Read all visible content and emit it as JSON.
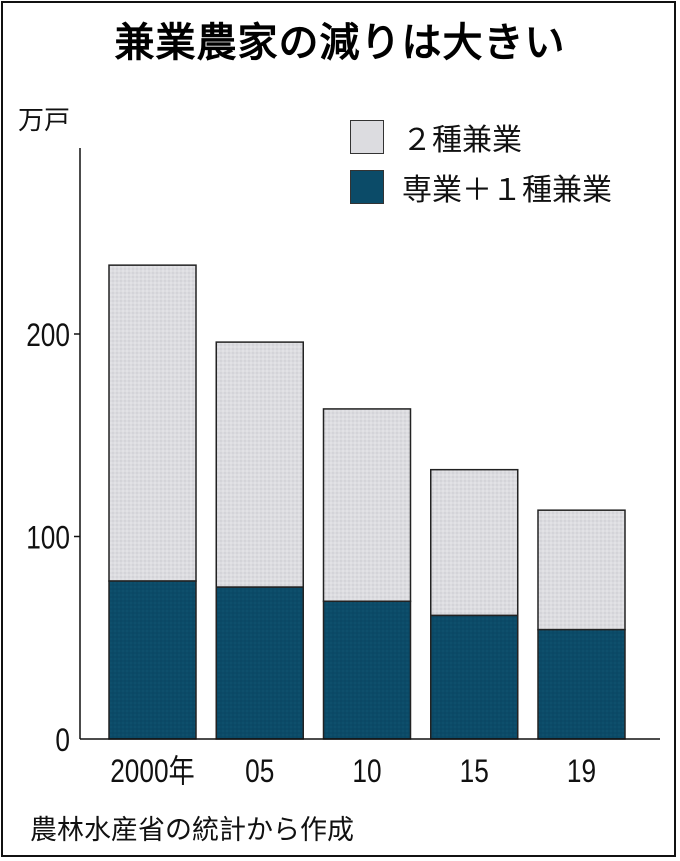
{
  "title": "兼業農家の減りは大きい",
  "unit_label": "万戸",
  "legend": [
    {
      "label": "２種兼業",
      "color": "#dcdce0",
      "key": "second"
    },
    {
      "label": "専業＋１種兼業",
      "color": "#0b4b68",
      "key": "first"
    }
  ],
  "source": "農林水産省の統計から作成",
  "y_ticks": [
    {
      "value": 0,
      "label": "0"
    },
    {
      "value": 100,
      "label": "100"
    },
    {
      "value": 200,
      "label": "200"
    }
  ],
  "x_labels": [
    "2000年",
    "05",
    "10",
    "15",
    "19"
  ],
  "colors": {
    "second": "#dcdce0",
    "first": "#0b4b68",
    "outline": "#222222",
    "axis": "#111111"
  },
  "chart_data": {
    "type": "bar",
    "stacked": true,
    "title": "兼業農家の減りは大きい",
    "xlabel": "",
    "ylabel": "万戸",
    "categories": [
      "2000年",
      "05",
      "10",
      "15",
      "19"
    ],
    "series": [
      {
        "name": "専業＋１種兼業",
        "values": [
          78,
          75,
          68,
          61,
          54
        ]
      },
      {
        "name": "２種兼業",
        "values": [
          156,
          121,
          95,
          72,
          59
        ]
      }
    ],
    "totals": [
      234,
      196,
      163,
      133,
      113
    ],
    "ylim": [
      0,
      290
    ],
    "yticks": [
      0,
      100,
      200
    ],
    "grid": false,
    "legend_position": "top-right",
    "source": "農林水産省の統計から作成"
  }
}
